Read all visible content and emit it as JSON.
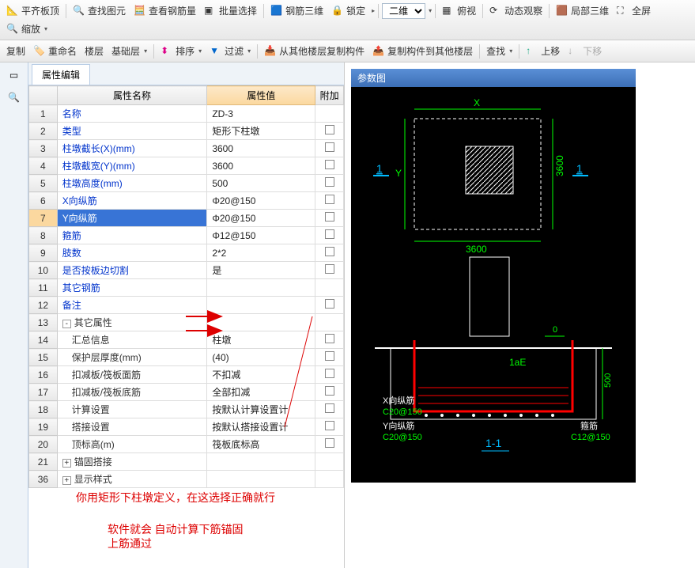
{
  "toolbar1": {
    "items": [
      {
        "label": "平齐板顶",
        "icon": "align"
      },
      {
        "label": "查找图元",
        "icon": "find"
      },
      {
        "label": "查看钢筋量",
        "icon": "rebar"
      },
      {
        "label": "批量选择",
        "icon": "select"
      },
      {
        "label": "钢筋三维",
        "icon": "3d"
      },
      {
        "label": "锁定",
        "icon": "lock"
      }
    ],
    "view_combo": "二维",
    "right_items": [
      {
        "label": "俯视",
        "icon": "top"
      },
      {
        "label": "动态观察",
        "icon": "orbit"
      },
      {
        "label": "局部三维",
        "icon": "partial3d"
      },
      {
        "label": "全屏",
        "icon": "fullscreen"
      },
      {
        "label": "缩放",
        "icon": "zoom"
      }
    ]
  },
  "toolbar2": {
    "items": [
      {
        "label": "复制"
      },
      {
        "label": "重命名"
      },
      {
        "label": "楼层"
      },
      {
        "label": "基础层"
      },
      {
        "label": "排序"
      },
      {
        "label": "过滤"
      },
      {
        "label": "从其他楼层复制构件"
      },
      {
        "label": "复制构件到其他楼层"
      },
      {
        "label": "查找"
      },
      {
        "label": "上移"
      },
      {
        "label": "下移"
      }
    ]
  },
  "tab_label": "属性编辑",
  "grid": {
    "headers": {
      "name": "属性名称",
      "value": "属性值",
      "extra": "附加"
    },
    "rows": [
      {
        "n": "1",
        "name": "名称",
        "val": "ZD-3",
        "chk": false,
        "cls": ""
      },
      {
        "n": "2",
        "name": "类型",
        "val": "矩形下柱墩",
        "chk": true,
        "cls": ""
      },
      {
        "n": "3",
        "name": "柱墩截长(X)(mm)",
        "val": "3600",
        "chk": true,
        "cls": ""
      },
      {
        "n": "4",
        "name": "柱墩截宽(Y)(mm)",
        "val": "3600",
        "chk": true,
        "cls": ""
      },
      {
        "n": "5",
        "name": "柱墩高度(mm)",
        "val": "500",
        "chk": true,
        "cls": ""
      },
      {
        "n": "6",
        "name": "X向纵筋",
        "val": "Φ20@150",
        "chk": true,
        "cls": ""
      },
      {
        "n": "7",
        "name": "Y向纵筋",
        "val": "Φ20@150",
        "chk": true,
        "cls": "",
        "sel": true
      },
      {
        "n": "8",
        "name": "箍筋",
        "val": "Φ12@150",
        "chk": true,
        "cls": ""
      },
      {
        "n": "9",
        "name": "肢数",
        "val": "2*2",
        "chk": true,
        "cls": ""
      },
      {
        "n": "10",
        "name": "是否按板边切割",
        "val": "是",
        "chk": true,
        "cls": ""
      },
      {
        "n": "11",
        "name": "其它钢筋",
        "val": "",
        "chk": false,
        "cls": ""
      },
      {
        "n": "12",
        "name": "备注",
        "val": "",
        "chk": true,
        "cls": ""
      },
      {
        "n": "13",
        "name": "其它属性",
        "val": "",
        "chk": false,
        "cls": "group",
        "expand": "-"
      },
      {
        "n": "14",
        "name": "汇总信息",
        "val": "柱墩",
        "chk": true,
        "cls": "sub"
      },
      {
        "n": "15",
        "name": "保护层厚度(mm)",
        "val": "(40)",
        "chk": true,
        "cls": "sub"
      },
      {
        "n": "16",
        "name": "扣减板/筏板面筋",
        "val": "不扣减",
        "chk": true,
        "cls": "sub",
        "arrow": true
      },
      {
        "n": "17",
        "name": "扣减板/筏板底筋",
        "val": "全部扣减",
        "chk": true,
        "cls": "sub",
        "arrow": true
      },
      {
        "n": "18",
        "name": "计算设置",
        "val": "按默认计算设置计",
        "chk": true,
        "cls": "sub"
      },
      {
        "n": "19",
        "name": "搭接设置",
        "val": "按默认搭接设置计",
        "chk": true,
        "cls": "sub"
      },
      {
        "n": "20",
        "name": "顶标高(m)",
        "val": "筏板底标高",
        "chk": true,
        "cls": "sub"
      },
      {
        "n": "21",
        "name": "锚固搭接",
        "val": "",
        "chk": false,
        "cls": "group",
        "expand": "+"
      },
      {
        "n": "36",
        "name": "显示样式",
        "val": "",
        "chk": false,
        "cls": "group",
        "expand": "+"
      }
    ]
  },
  "diagram": {
    "title": "参数图",
    "plan": {
      "dim_x": "X",
      "dim_y": "Y",
      "len_x": "3600",
      "len_y": "3600",
      "section_marks": [
        "1",
        "1"
      ]
    },
    "section": {
      "label_0": "0",
      "label_1ae": "1aE",
      "height": "500",
      "x_rebar_label": "X向纵筋",
      "x_rebar_val": "C20@150",
      "y_rebar_label": "Y向纵筋",
      "y_rebar_val": "C20@150",
      "stirrup_label": "箍筋",
      "stirrup_val": "C12@150",
      "section_name": "1-1"
    },
    "colors": {
      "bg": "#000000",
      "outline": "#ffffff",
      "dim": "#00ff00",
      "rebar_main": "#ff0000",
      "rebar_sec": "#00bfff",
      "text_green": "#00ff00",
      "text_white": "#ffffff"
    }
  },
  "annotations": {
    "line1": "你用矩形下柱墩定义，在这选择正确就行",
    "line2": "软件就会  自动计算下筋锚固",
    "line3": "上筋通过"
  }
}
